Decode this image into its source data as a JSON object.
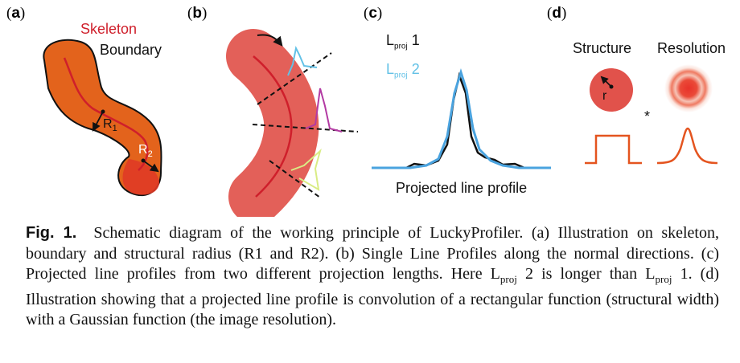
{
  "panels": {
    "a": {
      "label": "a",
      "skeleton": "Skeleton",
      "boundary": "Boundary",
      "r1": "R",
      "r1_sub": "1",
      "r2": "R",
      "r2_sub": "2"
    },
    "b": {
      "label": "b"
    },
    "c": {
      "label": "c",
      "lproj1": "L",
      "lproj1_sub": "proj",
      "lproj1_num": "1",
      "lproj2": "L",
      "lproj2_sub": "proj",
      "lproj2_num": "2",
      "profile_label": "Projected line profile"
    },
    "d": {
      "label": "d",
      "structure": "Structure",
      "resolution": "Resolution",
      "r": "r",
      "star": "*"
    }
  },
  "colors": {
    "skeleton": "#cf1f2b",
    "shape_a": "#e3631c",
    "shape_b": "#e1524b",
    "cyan": "#62c1e6",
    "magenta": "#b33aa3",
    "yellowgreen": "#d9ec85",
    "orange_line": "#e4541f",
    "blue_profile": "#4aa3df"
  },
  "caption": {
    "fig": "Fig. 1.",
    "text": "Schematic diagram of the working principle of LuckyProfiler. (a) Illustration on skeleton, boundary and structural radius (R1 and R2). (b) Single Line Profiles along the normal directions. (c) Projected line profiles from two different projection lengths. Here L",
    "sub1": "proj",
    "text2": " 2 is longer than L",
    "sub2": "proj",
    "text3": " 1. (d) Illustration showing that a projected line profile is convolution of a rectangular function (structural width) with a Gaussian function (the image resolution)."
  }
}
